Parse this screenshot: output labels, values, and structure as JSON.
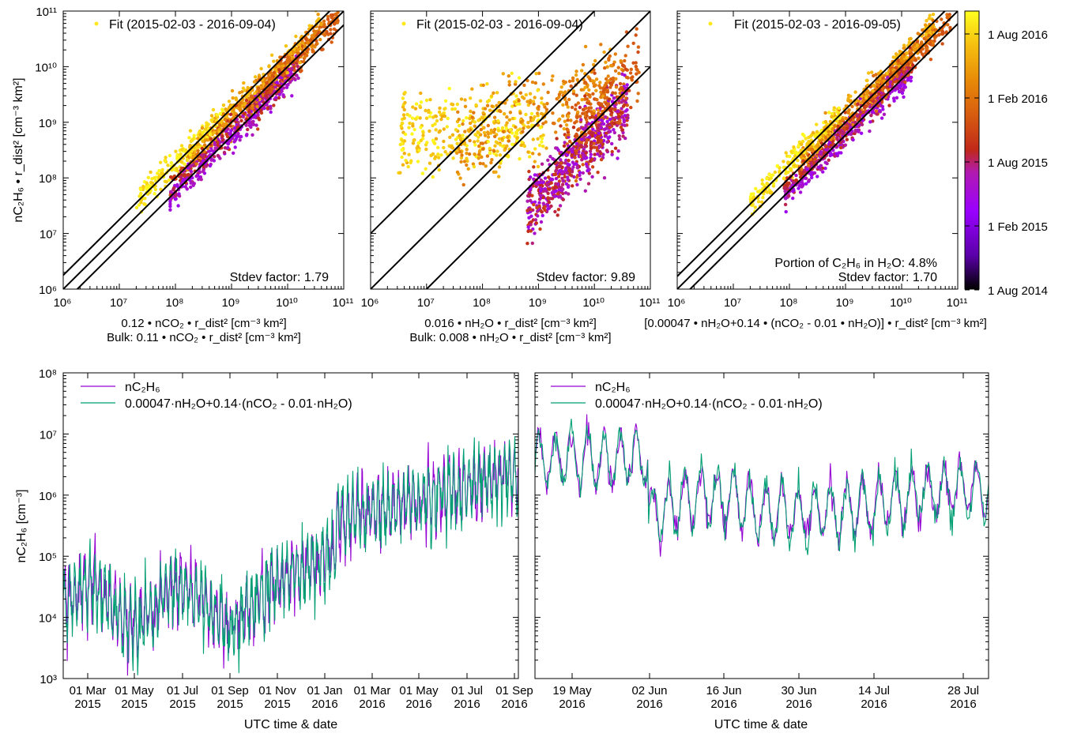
{
  "colorbar": {
    "labels": [
      "1 Aug 2016",
      "1 Feb 2016",
      "1 Aug 2015",
      "1 Feb 2015",
      "1 Aug 2014"
    ],
    "colors": [
      "#000000",
      "#5a00a8",
      "#a800ff",
      "#c0208f",
      "#cd4a1d",
      "#e06a10",
      "#f0a000",
      "#ffe81c",
      "#ffff40"
    ]
  },
  "scatter_panels": [
    {
      "legend": "Fit (2015-02-03 - 2016-09-04)",
      "stdev_label": "Stdev factor: 1.79",
      "portion_label": "",
      "xlabel_line1": "0.12 • nCO₂ • r_dist² [cm⁻³ km²]",
      "xlabel_line2": "Bulk: 0.11 • nCO₂ • r_dist² [cm⁻³ km²]",
      "fit_offsets_decades": [
        0.0,
        0.25,
        -0.25
      ]
    },
    {
      "legend": "Fit (2015-02-03 - 2016-09-04)",
      "stdev_label": "Stdev factor: 9.89",
      "portion_label": "",
      "xlabel_line1": "0.016 • nH₂O • r_dist² [cm⁻³ km²]",
      "xlabel_line2": "Bulk: 0.008 • nH₂O • r_dist² [cm⁻³ km²]",
      "fit_offsets_decades": [
        0.0,
        1.0,
        -1.0
      ]
    },
    {
      "legend": "Fit (2015-02-03 - 2016-09-05)",
      "stdev_label": "Stdev factor: 1.70",
      "portion_label": "Portion of C₂H₆ in H₂O: 4.8%",
      "xlabel_line1": "[0.00047 • nH₂O+0.14 • (nCO₂ - 0.01 • nH₂O)] • r_dist² [cm⁻³ km²]",
      "xlabel_line2": "",
      "fit_offsets_decades": [
        0.0,
        0.23,
        -0.23
      ]
    }
  ],
  "scatter_ylabel": "nC₂H₆ • r_dist² [cm⁻³ km²]",
  "timeseries": {
    "ylabel": "nC₂H₆ [cm⁻³]",
    "xlabel": "UTC time & date",
    "legend_1": "nC₂H₆",
    "legend_2": "0.00047·nH₂O+0.14·(nCO₂ - 0.01·nH₂O)",
    "color_1": "#9400d3",
    "color_2": "#009e73",
    "left_ticks": [
      [
        "01 Mar",
        "2015"
      ],
      [
        "01 May",
        "2015"
      ],
      [
        "01 Jul",
        "2015"
      ],
      [
        "01 Sep",
        "2015"
      ],
      [
        "01 Nov",
        "2015"
      ],
      [
        "01 Jan",
        "2016"
      ],
      [
        "01 Mar",
        "2016"
      ],
      [
        "01 May",
        "2016"
      ],
      [
        "01 Jul",
        "2016"
      ],
      [
        "01 Sep",
        "2016"
      ]
    ],
    "right_ticks": [
      [
        "19 May",
        "2016"
      ],
      [
        "02 Jun",
        "2016"
      ],
      [
        "16 Jun",
        "2016"
      ],
      [
        "30 Jun",
        "2016"
      ],
      [
        "14 Jul",
        "2016"
      ],
      [
        "28 Jul",
        "2016"
      ]
    ]
  },
  "chart_data": [
    {
      "type": "scatter",
      "title": "",
      "legend": "Fit (2015-02-03 - 2016-09-04)",
      "xlabel": "0.12 • nCO₂ • r_dist² [cm⁻³ km²] / Bulk: 0.11 • nCO₂ • r_dist² [cm⁻³ km²]",
      "ylabel": "nC₂H₆ • r_dist² [cm⁻³ km²]",
      "x_scale": "log",
      "y_scale": "log",
      "xlim": [
        1000000.0,
        100000000000.0
      ],
      "ylim": [
        1000000.0,
        100000000000.0
      ],
      "fit_line": "y = x",
      "stdev_factor": 1.79,
      "color": "time (1 Aug 2014 - 1 Aug 2016)"
    },
    {
      "type": "scatter",
      "title": "",
      "legend": "Fit (2015-02-03 - 2016-09-04)",
      "xlabel": "0.016 • nH₂O • r_dist² [cm⁻³ km²] / Bulk: 0.008 • nH₂O • r_dist² [cm⁻³ km²]",
      "ylabel": "nC₂H₆ • r_dist² [cm⁻³ km²]",
      "x_scale": "log",
      "y_scale": "log",
      "xlim": [
        1000000.0,
        100000000000.0
      ],
      "ylim": [
        1000000.0,
        100000000000.0
      ],
      "fit_line": "y = x",
      "stdev_factor": 9.89
    },
    {
      "type": "scatter",
      "title": "",
      "legend": "Fit (2015-02-03 - 2016-09-05)",
      "xlabel": "[0.00047 • nH₂O+0.14 • (nCO₂ - 0.01 • nH₂O)] • r_dist² [cm⁻³ km²]",
      "ylabel": "nC₂H₆ • r_dist² [cm⁻³ km²]",
      "x_scale": "log",
      "y_scale": "log",
      "xlim": [
        1000000.0,
        100000000000.0
      ],
      "ylim": [
        1000000.0,
        100000000000.0
      ],
      "fit_line": "y = x",
      "stdev_factor": 1.7,
      "portion_c2h6_in_h2o_percent": 4.8
    },
    {
      "type": "line",
      "title": "",
      "xlabel": "UTC time & date",
      "ylabel": "nC₂H₆ [cm⁻³]",
      "y_scale": "log",
      "ylim": [
        1000.0,
        100000000.0
      ],
      "xlim": [
        "2015-02-01",
        "2016-09-04"
      ],
      "series": [
        {
          "name": "nC₂H₆",
          "x": [
            "2015-02-01",
            "2015-03-01",
            "2015-05-01",
            "2015-07-01",
            "2015-09-01",
            "2015-11-01",
            "2016-01-01",
            "2016-03-01",
            "2016-05-01",
            "2016-07-01",
            "2016-09-01"
          ],
          "values": [
            15000.0,
            20000.0,
            15000.0,
            20000.0,
            40000.0,
            50000.0,
            30000.0,
            200000.0,
            400000.0,
            1000000.0,
            3000000.0
          ]
        },
        {
          "name": "0.00047·nH₂O+0.14·(nCO₂ - 0.01·nH₂O)",
          "x": [
            "2015-02-01",
            "2015-03-01",
            "2015-05-01",
            "2015-07-01",
            "2015-09-01",
            "2015-11-01",
            "2016-01-01",
            "2016-03-01",
            "2016-05-01",
            "2016-07-01",
            "2016-09-01"
          ],
          "values": [
            20000.0,
            20000.0,
            20000.0,
            20000.0,
            50000.0,
            60000.0,
            40000.0,
            300000.0,
            500000.0,
            1500000.0,
            4000000.0
          ]
        }
      ]
    },
    {
      "type": "line",
      "title": "",
      "xlabel": "UTC time & date",
      "ylabel": "nC₂H₆ [cm⁻³]",
      "y_scale": "log",
      "ylim": [
        1000.0,
        100000000.0
      ],
      "xlim": [
        "2016-05-12",
        "2016-08-02"
      ],
      "series": [
        {
          "name": "nC₂H₆",
          "x": [
            "2016-05-12",
            "2016-05-26",
            "2016-06-02",
            "2016-06-09",
            "2016-06-16",
            "2016-06-23",
            "2016-06-30",
            "2016-07-07",
            "2016-07-14",
            "2016-07-21",
            "2016-07-28"
          ],
          "values": [
            2000000.0,
            2000000.0,
            150000.0,
            2500000.0,
            400000.0,
            500000.0,
            1000000.0,
            600000.0,
            1000000.0,
            2000000.0,
            2000000.0
          ]
        },
        {
          "name": "0.00047·nH₂O+0.14·(nCO₂ - 0.01·nH₂O)",
          "x": [
            "2016-05-12",
            "2016-05-26",
            "2016-06-02",
            "2016-06-09",
            "2016-06-16",
            "2016-06-23",
            "2016-06-30",
            "2016-07-07",
            "2016-07-14",
            "2016-07-21",
            "2016-07-28"
          ],
          "values": [
            1500000.0,
            1500000.0,
            130000.0,
            2000000.0,
            300000.0,
            400000.0,
            800000.0,
            500000.0,
            800000.0,
            1500000.0,
            1500000.0
          ]
        }
      ]
    }
  ]
}
